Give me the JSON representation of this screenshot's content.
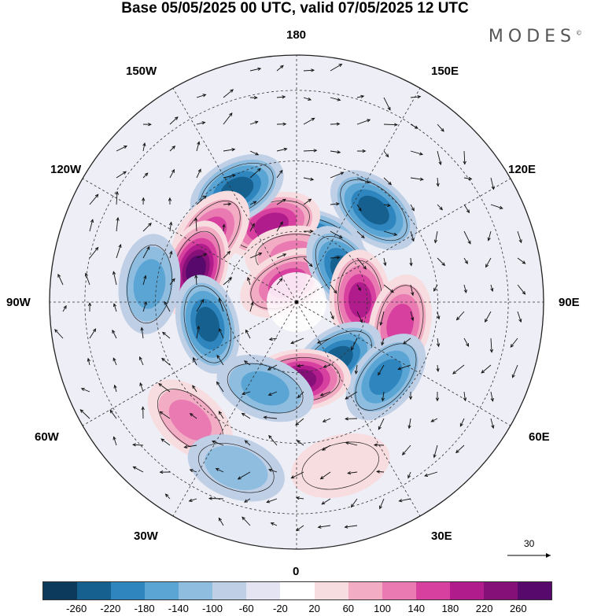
{
  "title": "Base 05/05/2025 00 UTC, valid 07/05/2025 12 UTC",
  "brand": "MODES",
  "brand_mark": "©",
  "longitude_labels": {
    "top": "180",
    "bottom": "0",
    "left": "90W",
    "right": "90E",
    "nw_upper": "150W",
    "nw_lower": "120W",
    "ne_upper": "150E",
    "ne_lower": "120E",
    "sw_upper": "60W",
    "sw_lower": "30W",
    "se_upper": "60E",
    "se_lower": "30E"
  },
  "vector_reference": "30",
  "colorbar": {
    "colors": [
      "#0c3a5c",
      "#16608f",
      "#2f86be",
      "#5aa5d4",
      "#8fbde0",
      "#bfcfe6",
      "#e5e4f2",
      "#ffffff",
      "#f8dde0",
      "#f2adc4",
      "#e97bb2",
      "#d7409e",
      "#b01c8c",
      "#851077",
      "#57096c"
    ],
    "ticks": [
      "-260",
      "-220",
      "-180",
      "-140",
      "-100",
      "-60",
      "-20",
      "20",
      "60",
      "100",
      "140",
      "180",
      "220",
      "260"
    ]
  },
  "anomaly_centers": [
    {
      "type": "neg",
      "lon": 163,
      "lat": 72,
      "level": 6
    },
    {
      "type": "pos",
      "lon": -162,
      "lat": 67,
      "level": 5
    },
    {
      "type": "pos",
      "lon": -178,
      "lat": 77,
      "level": 3
    },
    {
      "type": "neg",
      "lon": -152,
      "lat": 54,
      "level": 5
    },
    {
      "type": "pos",
      "lon": -128,
      "lat": 59,
      "level": 4
    },
    {
      "type": "pos",
      "lon": -108,
      "lat": 60,
      "level": 7
    },
    {
      "type": "neg",
      "lon": -97,
      "lat": 48,
      "level": 3
    },
    {
      "type": "pos",
      "lon": -155,
      "lat": 84,
      "level": 4
    },
    {
      "type": "neg",
      "lon": 140,
      "lat": 56,
      "level": 5
    },
    {
      "type": "neg",
      "lon": 123,
      "lat": 74,
      "level": 5
    },
    {
      "type": "pos",
      "lon": 92,
      "lat": 72,
      "level": 5
    },
    {
      "type": "pos",
      "lon": 78,
      "lat": 60,
      "level": 4
    },
    {
      "type": "neg",
      "lon": 35,
      "lat": 70,
      "level": 5
    },
    {
      "type": "neg",
      "lon": 50,
      "lat": 57,
      "level": 4
    },
    {
      "type": "pos",
      "lon": 3,
      "lat": 68,
      "level": 6
    },
    {
      "type": "neg",
      "lon": -76,
      "lat": 64,
      "level": 5
    },
    {
      "type": "pos",
      "lon": -42,
      "lat": 45,
      "level": 3
    },
    {
      "type": "neg",
      "lon": -20,
      "lat": 40,
      "level": 2
    },
    {
      "type": "neg",
      "lon": -20,
      "lat": 64,
      "level": 3
    },
    {
      "type": "pos",
      "lon": 15,
      "lat": 42,
      "level": 1
    }
  ]
}
